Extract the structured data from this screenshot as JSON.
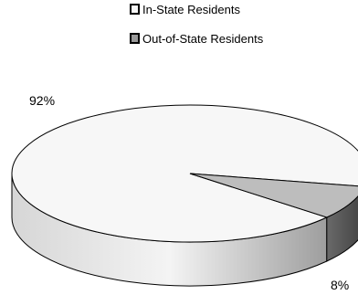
{
  "chart_data": {
    "type": "pie",
    "title": "",
    "legend_position": "top",
    "categories": [
      "In-State Residents",
      "Out-of-State Residents"
    ],
    "values": [
      92,
      8
    ],
    "labels": [
      "92%",
      "8%"
    ],
    "colors": [
      "#f7f7f7",
      "#bdbdbd"
    ]
  }
}
